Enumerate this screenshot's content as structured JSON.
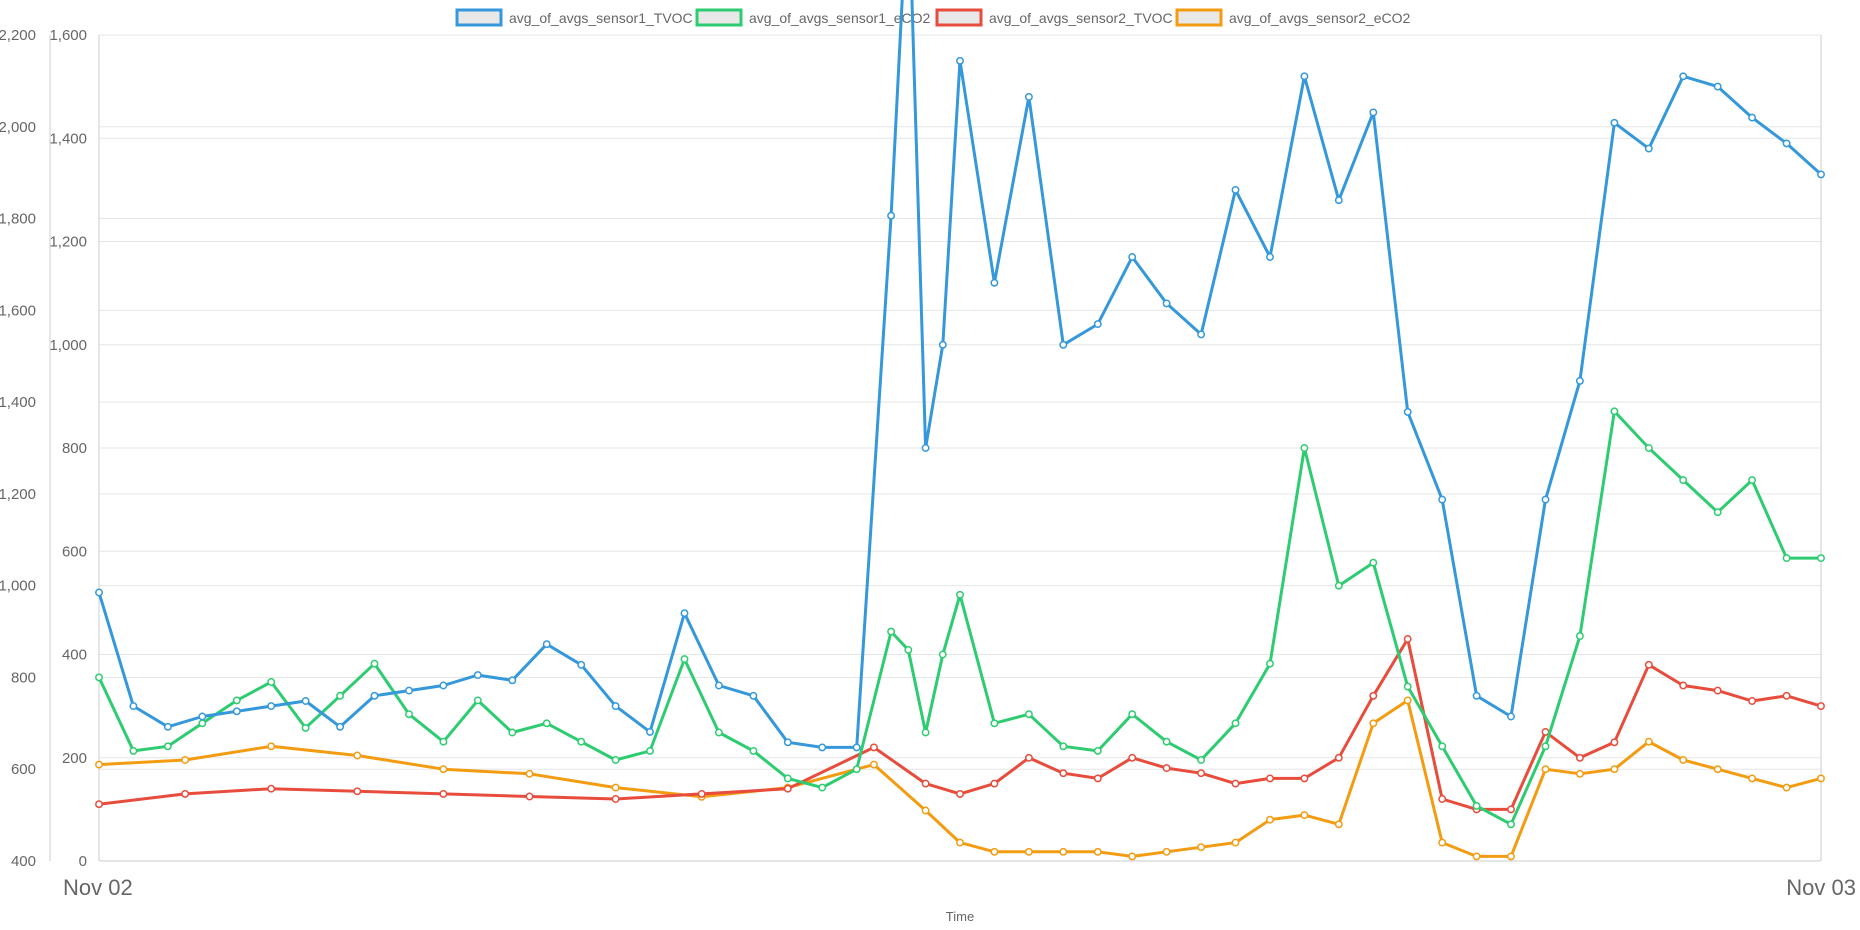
{
  "chart_data": {
    "type": "line",
    "title": "",
    "xlabel": "Time",
    "x_ticks": [
      "Nov 02",
      "Nov 03"
    ],
    "x_range": [
      "Nov 02",
      "Nov 03"
    ],
    "left_axis": {
      "label": "",
      "range": [
        400,
        2200
      ],
      "ticks": [
        "400",
        "600",
        "800",
        "1,000",
        "1,200",
        "1,400",
        "1,600",
        "1,800",
        "2,000",
        "2,200"
      ],
      "tick_values": [
        400,
        600,
        800,
        1000,
        1200,
        1400,
        1600,
        1800,
        2000,
        2200
      ]
    },
    "right_axis": {
      "label": "",
      "range": [
        0,
        1600
      ],
      "ticks": [
        "0",
        "200",
        "400",
        "600",
        "800",
        "1,000",
        "1,200",
        "1,400",
        "1,600"
      ],
      "tick_values": [
        0,
        200,
        400,
        600,
        800,
        1000,
        1200,
        1400,
        1600
      ]
    },
    "grid": true,
    "legend_position": "top",
    "series": [
      {
        "name": "avg_of_avgs_sensor1_TVOC",
        "axis": "right",
        "color": "#3498db",
        "x": [
          0.0,
          0.02,
          0.04,
          0.06,
          0.08,
          0.1,
          0.12,
          0.14,
          0.16,
          0.18,
          0.2,
          0.22,
          0.24,
          0.26,
          0.28,
          0.3,
          0.32,
          0.34,
          0.36,
          0.38,
          0.4,
          0.42,
          0.44,
          0.46,
          0.47,
          0.48,
          0.49,
          0.5,
          0.52,
          0.54,
          0.56,
          0.58,
          0.6,
          0.62,
          0.64,
          0.66,
          0.68,
          0.7,
          0.72,
          0.74,
          0.76,
          0.78,
          0.8,
          0.82,
          0.84,
          0.86,
          0.88,
          0.9,
          0.92,
          0.94,
          0.96,
          0.98,
          1.0
        ],
        "values": [
          520,
          300,
          260,
          280,
          290,
          300,
          310,
          260,
          320,
          330,
          340,
          360,
          350,
          420,
          380,
          300,
          250,
          480,
          340,
          320,
          230,
          220,
          220,
          1250,
          1900,
          800,
          1000,
          1550,
          1120,
          1480,
          1000,
          1040,
          1170,
          1080,
          1020,
          1300,
          1170,
          1520,
          1280,
          1450,
          870,
          700,
          320,
          280,
          700,
          930,
          1430,
          1380,
          1520,
          1500,
          1440,
          1390,
          1330
        ]
      },
      {
        "name": "avg_of_avgs_sensor1_eCO2",
        "axis": "left",
        "color": "#2ecc71",
        "x": [
          0.0,
          0.02,
          0.04,
          0.06,
          0.08,
          0.1,
          0.12,
          0.14,
          0.16,
          0.18,
          0.2,
          0.22,
          0.24,
          0.26,
          0.28,
          0.3,
          0.32,
          0.34,
          0.36,
          0.38,
          0.4,
          0.42,
          0.44,
          0.46,
          0.47,
          0.48,
          0.49,
          0.5,
          0.52,
          0.54,
          0.56,
          0.58,
          0.6,
          0.62,
          0.64,
          0.66,
          0.68,
          0.7,
          0.72,
          0.74,
          0.76,
          0.78,
          0.8,
          0.82,
          0.84,
          0.86,
          0.88,
          0.9,
          0.92,
          0.94,
          0.96,
          0.98,
          1.0
        ],
        "values": [
          800,
          640,
          650,
          700,
          750,
          790,
          690,
          760,
          830,
          720,
          660,
          750,
          680,
          700,
          660,
          620,
          640,
          840,
          680,
          640,
          580,
          560,
          600,
          900,
          860,
          680,
          850,
          980,
          700,
          720,
          650,
          640,
          720,
          660,
          620,
          700,
          830,
          1300,
          1000,
          1050,
          780,
          650,
          520,
          480,
          650,
          890,
          1380,
          1300,
          1230,
          1160,
          1230,
          1060,
          1060
        ]
      },
      {
        "name": "avg_of_avgs_sensor2_TVOC",
        "axis": "right",
        "color": "#e74c3c",
        "x": [
          0.0,
          0.05,
          0.1,
          0.15,
          0.2,
          0.25,
          0.3,
          0.35,
          0.4,
          0.45,
          0.48,
          0.5,
          0.52,
          0.54,
          0.56,
          0.58,
          0.6,
          0.62,
          0.64,
          0.66,
          0.68,
          0.7,
          0.72,
          0.74,
          0.76,
          0.78,
          0.8,
          0.82,
          0.84,
          0.86,
          0.88,
          0.9,
          0.92,
          0.94,
          0.96,
          0.98,
          1.0
        ],
        "values": [
          110,
          130,
          140,
          135,
          130,
          125,
          120,
          130,
          140,
          220,
          150,
          130,
          150,
          200,
          170,
          160,
          200,
          180,
          170,
          150,
          160,
          160,
          200,
          320,
          430,
          120,
          100,
          100,
          250,
          200,
          230,
          380,
          340,
          330,
          310,
          320,
          300
        ]
      },
      {
        "name": "avg_of_avgs_sensor2_eCO2",
        "axis": "left",
        "color": "#f39c12",
        "x": [
          0.0,
          0.05,
          0.1,
          0.15,
          0.2,
          0.25,
          0.3,
          0.35,
          0.4,
          0.45,
          0.48,
          0.5,
          0.52,
          0.54,
          0.56,
          0.58,
          0.6,
          0.62,
          0.64,
          0.66,
          0.68,
          0.7,
          0.72,
          0.74,
          0.76,
          0.78,
          0.8,
          0.82,
          0.84,
          0.86,
          0.88,
          0.9,
          0.92,
          0.94,
          0.96,
          0.98,
          1.0
        ],
        "values": [
          610,
          620,
          650,
          630,
          600,
          590,
          560,
          540,
          560,
          610,
          510,
          440,
          420,
          420,
          420,
          420,
          410,
          420,
          430,
          440,
          490,
          500,
          480,
          700,
          750,
          440,
          410,
          410,
          600,
          590,
          600,
          660,
          620,
          600,
          580,
          560,
          580
        ]
      }
    ]
  }
}
